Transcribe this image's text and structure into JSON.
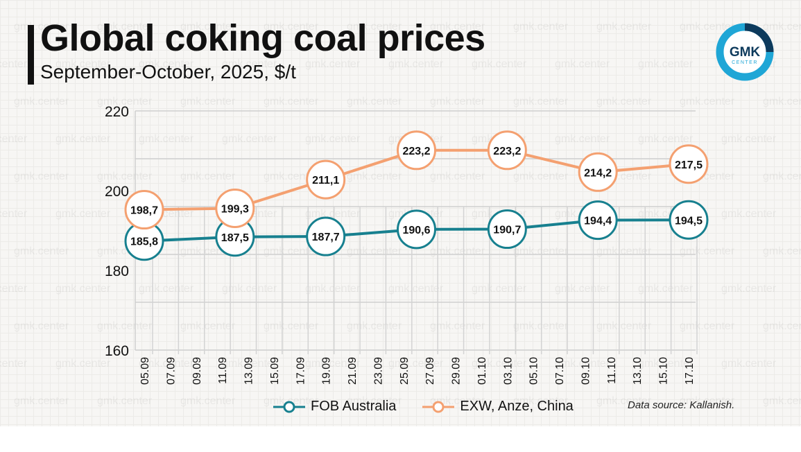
{
  "header": {
    "title": "Global coking coal prices",
    "subtitle": "September-October, 2025, $/t"
  },
  "logo": {
    "line1": "GMK",
    "line2": "CENTER",
    "colors": {
      "ring": "#1fa6d6",
      "accent": "#0d3a5c"
    }
  },
  "watermark": "gmk.center",
  "source": "Data source: Kallanish.",
  "chart_data": {
    "type": "line",
    "title": "Global coking coal prices",
    "subtitle": "September-October, 2025, $/t",
    "xlabel": "",
    "ylabel": "",
    "ylim": [
      160,
      220
    ],
    "yticks": [
      "220",
      "200",
      "180",
      "160"
    ],
    "grid": true,
    "legend_position": "bottom",
    "categories": [
      "05.09",
      "07.09",
      "09.09",
      "11.09",
      "13.09",
      "15.09",
      "17.09",
      "19.09",
      "21.09",
      "23.09",
      "25.09",
      "27.09",
      "29.09",
      "01.10",
      "03.10",
      "05.10",
      "07.10",
      "09.10",
      "11.10",
      "13.10",
      "15.10",
      "17.10"
    ],
    "series": [
      {
        "name": "FOB Australia",
        "color": "#17808f",
        "points": [
          {
            "x": "05.09",
            "y": 185.8,
            "label": "185,8"
          },
          {
            "x": "12.09",
            "y": 187.5,
            "label": "187,5"
          },
          {
            "x": "19.09",
            "y": 187.7,
            "label": "187,7"
          },
          {
            "x": "26.09",
            "y": 190.6,
            "label": "190,6"
          },
          {
            "x": "03.10",
            "y": 190.7,
            "label": "190,7"
          },
          {
            "x": "10.10",
            "y": 194.4,
            "label": "194,4"
          },
          {
            "x": "17.10",
            "y": 194.5,
            "label": "194,5"
          }
        ]
      },
      {
        "name": "EXW, Anze, China",
        "color": "#f4a070",
        "points": [
          {
            "x": "05.09",
            "y": 198.7,
            "label": "198,7"
          },
          {
            "x": "12.09",
            "y": 199.3,
            "label": "199,3"
          },
          {
            "x": "19.09",
            "y": 211.1,
            "label": "211,1"
          },
          {
            "x": "26.09",
            "y": 223.2,
            "label": "223,2"
          },
          {
            "x": "03.10",
            "y": 223.2,
            "label": "223,2"
          },
          {
            "x": "10.10",
            "y": 214.2,
            "label": "214,2"
          },
          {
            "x": "17.10",
            "y": 217.5,
            "label": "217,5"
          }
        ]
      }
    ]
  },
  "legend": [
    {
      "label": "FOB Australia",
      "color": "#17808f"
    },
    {
      "label": "EXW, Anze, China",
      "color": "#f4a070"
    }
  ]
}
